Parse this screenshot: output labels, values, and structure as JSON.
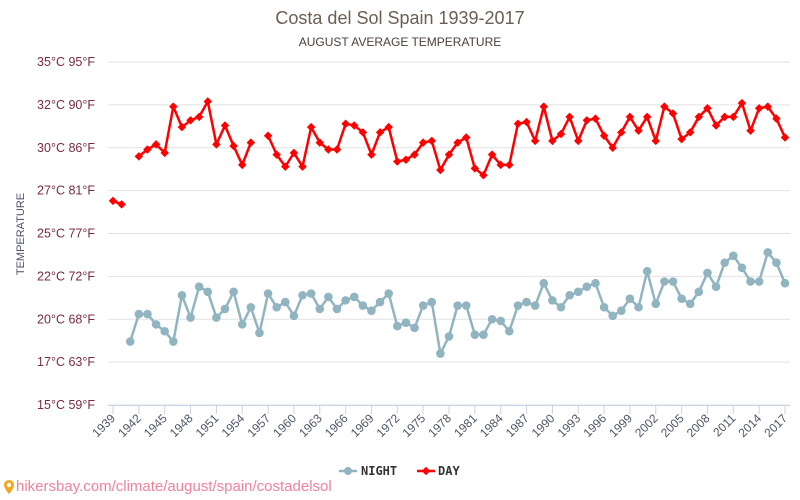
{
  "chart_data": {
    "type": "line",
    "title": "Costa del Sol Spain 1939-2017",
    "subtitle": "AUGUST AVERAGE TEMPERATURE",
    "ylabel": "TEMPERATURE",
    "xlabel": "",
    "ylim": [
      15,
      35
    ],
    "xlim": [
      1939,
      2017
    ],
    "grid": true,
    "legend_position": "bottom-center",
    "yticks": [
      {
        "value": 15,
        "label": "15°C 59°F"
      },
      {
        "value": 17.5,
        "label": "17°C 63°F"
      },
      {
        "value": 20,
        "label": "20°C 68°F"
      },
      {
        "value": 22.5,
        "label": "22°C 72°F"
      },
      {
        "value": 25,
        "label": "25°C 77°F"
      },
      {
        "value": 27.5,
        "label": "27°C 81°F"
      },
      {
        "value": 30,
        "label": "30°C 86°F"
      },
      {
        "value": 32.5,
        "label": "32°C 90°F"
      },
      {
        "value": 35,
        "label": "35°C 95°F"
      }
    ],
    "xticks": [
      1939,
      1942,
      1945,
      1948,
      1951,
      1954,
      1957,
      1960,
      1963,
      1966,
      1969,
      1972,
      1975,
      1978,
      1981,
      1984,
      1987,
      1990,
      1993,
      1996,
      1999,
      2002,
      2005,
      2008,
      2011,
      2014,
      2017
    ],
    "x": [
      1939,
      1940,
      1941,
      1942,
      1943,
      1944,
      1945,
      1946,
      1947,
      1948,
      1949,
      1950,
      1951,
      1952,
      1953,
      1954,
      1955,
      1956,
      1957,
      1958,
      1959,
      1960,
      1961,
      1962,
      1963,
      1964,
      1965,
      1966,
      1967,
      1968,
      1969,
      1970,
      1971,
      1972,
      1973,
      1974,
      1975,
      1976,
      1977,
      1978,
      1979,
      1980,
      1981,
      1982,
      1983,
      1984,
      1985,
      1986,
      1987,
      1988,
      1989,
      1990,
      1991,
      1992,
      1993,
      1994,
      1995,
      1996,
      1997,
      1998,
      1999,
      2000,
      2001,
      2002,
      2003,
      2004,
      2005,
      2006,
      2007,
      2008,
      2009,
      2010,
      2011,
      2012,
      2013,
      2014,
      2015,
      2016,
      2017
    ],
    "series": [
      {
        "name": "NIGHT",
        "color": "#91b4c1",
        "marker": "circle",
        "values": [
          null,
          null,
          18.7,
          20.3,
          20.3,
          19.7,
          19.3,
          18.7,
          21.4,
          20.1,
          21.9,
          21.6,
          20.1,
          20.6,
          21.6,
          19.7,
          20.7,
          19.2,
          21.5,
          20.7,
          21.0,
          20.2,
          21.4,
          21.5,
          20.6,
          21.3,
          20.6,
          21.1,
          21.3,
          20.8,
          20.5,
          21.0,
          21.5,
          19.6,
          19.8,
          19.5,
          20.8,
          21.0,
          18.0,
          19.0,
          20.8,
          20.8,
          19.1,
          19.1,
          20.0,
          19.9,
          19.3,
          20.8,
          21.0,
          20.8,
          22.1,
          21.1,
          20.7,
          21.4,
          21.6,
          21.9,
          22.1,
          20.7,
          20.2,
          20.5,
          21.2,
          20.7,
          22.8,
          20.9,
          22.2,
          22.2,
          21.2,
          20.9,
          21.6,
          22.7,
          21.9,
          23.3,
          23.7,
          23.0,
          22.2,
          22.2,
          23.9,
          23.3,
          22.1
        ]
      },
      {
        "name": "DAY",
        "color": "#ff0000",
        "marker": "diamond",
        "values": [
          26.9,
          26.7,
          null,
          29.5,
          29.9,
          30.2,
          29.7,
          32.4,
          31.2,
          31.6,
          31.8,
          32.7,
          30.2,
          31.3,
          30.1,
          29.0,
          30.3,
          null,
          30.7,
          29.6,
          28.9,
          29.7,
          28.9,
          31.2,
          30.3,
          29.9,
          29.9,
          31.4,
          31.3,
          30.9,
          29.6,
          30.9,
          31.2,
          29.2,
          29.3,
          29.6,
          30.3,
          30.4,
          28.7,
          29.6,
          30.3,
          30.6,
          28.8,
          28.4,
          29.6,
          29.0,
          29.0,
          31.4,
          31.5,
          30.4,
          32.4,
          30.4,
          30.8,
          31.8,
          30.4,
          31.6,
          31.7,
          30.7,
          30.0,
          30.9,
          31.8,
          31.0,
          31.8,
          30.4,
          32.4,
          32.0,
          30.5,
          30.9,
          31.8,
          32.3,
          31.3,
          31.8,
          31.8,
          32.6,
          31.0,
          32.3,
          32.4,
          31.7,
          30.6
        ]
      }
    ]
  },
  "watermark": {
    "icon": "map-pin-icon",
    "text": "hikersbay.com/climate/august/spain/costadelsol"
  }
}
